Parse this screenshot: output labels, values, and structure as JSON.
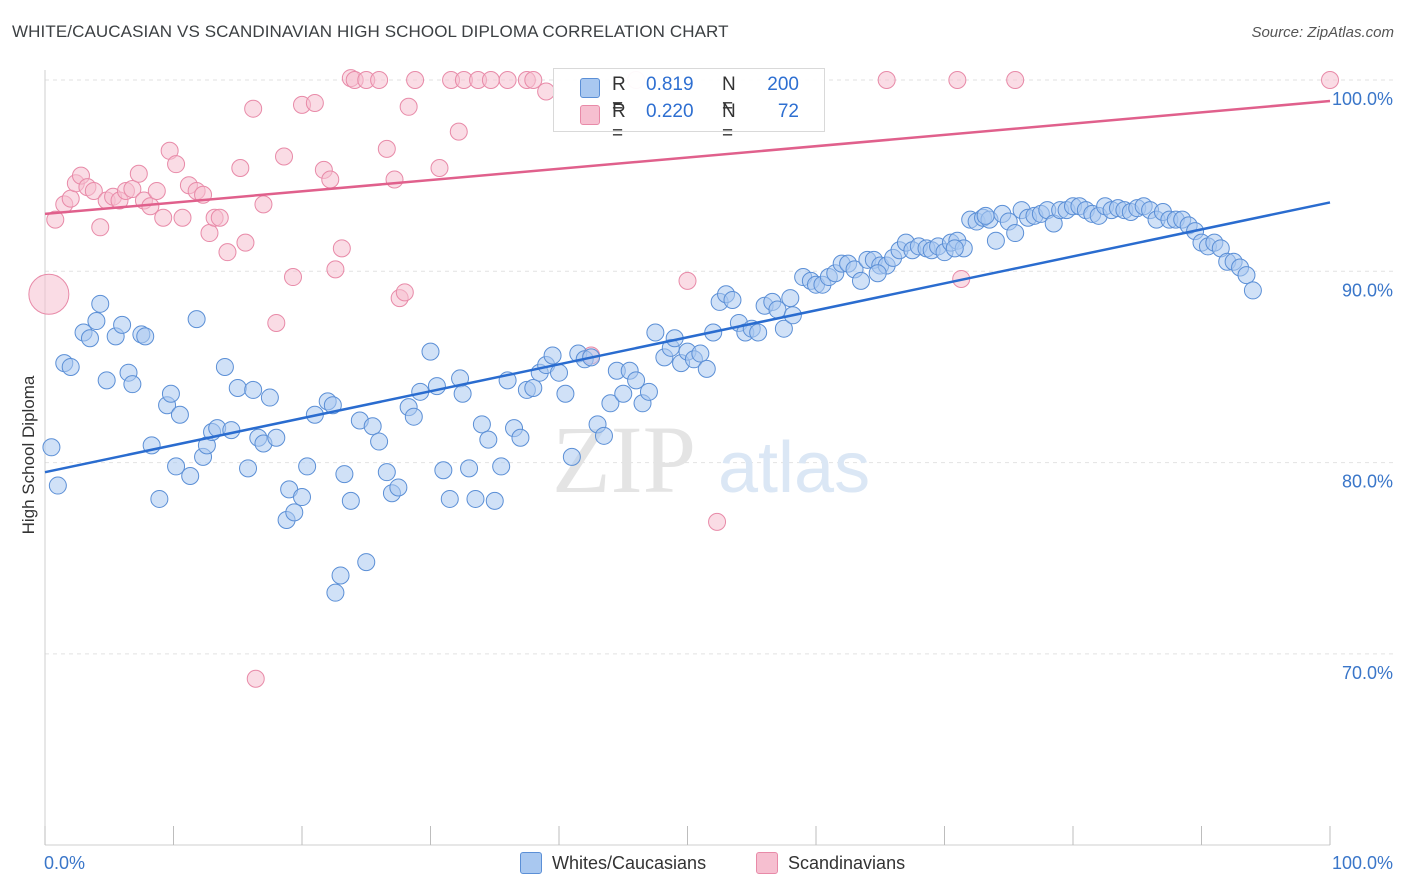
{
  "title": "WHITE/CAUCASIAN VS SCANDINAVIAN HIGH SCHOOL DIPLOMA CORRELATION CHART",
  "source": "Source: ZipAtlas.com",
  "watermark_left": "ZIP",
  "watermark_right": "atlas",
  "legend": {
    "r_label": "R =",
    "n_label": "N =",
    "blue_r": "0.819",
    "blue_n": "200",
    "pink_r": "0.220",
    "pink_n": "72"
  },
  "bottom_legend": {
    "blue_label": "Whites/Caucasians",
    "pink_label": "Scandinavians"
  },
  "colors": {
    "blue_fill": "#a9c8f0",
    "blue_stroke": "#5b8fd6",
    "blue_line": "#2a6ccf",
    "pink_fill": "#f6bfd0",
    "pink_stroke": "#e88aa8",
    "pink_line": "#e0608c",
    "tick_label": "#3a76c9"
  },
  "chart_data": {
    "type": "scatter",
    "title": "WHITE/CAUCASIAN VS SCANDINAVIAN HIGH SCHOOL DIPLOMA CORRELATION CHART",
    "xlabel": "",
    "ylabel": "High School Diploma",
    "xlim": [
      0,
      100
    ],
    "ylim": [
      58,
      102
    ],
    "x_tick_labels": [
      "0.0%",
      "100.0%"
    ],
    "y_ticks": [
      70,
      80,
      90,
      100
    ],
    "y_tick_labels": [
      "70.0%",
      "80.0%",
      "90.0%",
      "100.0%"
    ],
    "grid": "horizontal dashed",
    "legend_position": "top-center",
    "series": [
      {
        "name": "Whites/Caucasians",
        "R": 0.819,
        "N": 200,
        "trend": {
          "x": [
            0,
            100
          ],
          "y": [
            79.5,
            93.6
          ]
        },
        "points": [
          [
            0.5,
            80.8
          ],
          [
            1,
            78.8
          ],
          [
            1.5,
            85.2
          ],
          [
            2,
            85
          ],
          [
            3,
            86.8
          ],
          [
            3.5,
            86.5
          ],
          [
            4,
            87.4
          ],
          [
            4.3,
            88.3
          ],
          [
            4.8,
            84.3
          ],
          [
            5.5,
            86.6
          ],
          [
            6,
            87.2
          ],
          [
            6.5,
            84.7
          ],
          [
            6.8,
            84.1
          ],
          [
            7.5,
            86.7
          ],
          [
            7.8,
            86.6
          ],
          [
            8.3,
            80.9
          ],
          [
            8.9,
            78.1
          ],
          [
            9.5,
            83
          ],
          [
            9.8,
            83.6
          ],
          [
            10.2,
            79.8
          ],
          [
            10.5,
            82.5
          ],
          [
            11.3,
            79.3
          ],
          [
            11.8,
            87.5
          ],
          [
            12.3,
            80.3
          ],
          [
            12.6,
            80.9
          ],
          [
            13,
            81.6
          ],
          [
            13.4,
            81.8
          ],
          [
            14,
            85
          ],
          [
            14.5,
            81.7
          ],
          [
            15,
            83.9
          ],
          [
            15.8,
            79.7
          ],
          [
            16.2,
            83.8
          ],
          [
            16.6,
            81.3
          ],
          [
            17,
            81
          ],
          [
            17.5,
            83.4
          ],
          [
            18,
            81.3
          ],
          [
            18.8,
            77
          ],
          [
            19,
            78.6
          ],
          [
            19.4,
            77.4
          ],
          [
            20,
            78.2
          ],
          [
            20.4,
            79.8
          ],
          [
            21,
            82.5
          ],
          [
            22,
            83.2
          ],
          [
            22.4,
            83
          ],
          [
            22.6,
            73.2
          ],
          [
            23,
            74.1
          ],
          [
            23.3,
            79.4
          ],
          [
            23.8,
            78
          ],
          [
            24.5,
            82.2
          ],
          [
            25,
            74.8
          ],
          [
            25.5,
            81.9
          ],
          [
            26,
            81.1
          ],
          [
            26.6,
            79.5
          ],
          [
            27,
            78.4
          ],
          [
            27.5,
            78.7
          ],
          [
            28.3,
            82.9
          ],
          [
            28.7,
            82.4
          ],
          [
            29.2,
            83.7
          ],
          [
            30,
            85.8
          ],
          [
            30.5,
            84
          ],
          [
            31,
            79.6
          ],
          [
            31.5,
            78.1
          ],
          [
            32.3,
            84.4
          ],
          [
            32.5,
            83.6
          ],
          [
            33,
            79.7
          ],
          [
            33.5,
            78.1
          ],
          [
            34,
            82
          ],
          [
            34.5,
            81.2
          ],
          [
            35,
            78
          ],
          [
            35.5,
            79.8
          ],
          [
            36,
            84.3
          ],
          [
            36.5,
            81.8
          ],
          [
            37,
            81.3
          ],
          [
            37.5,
            83.8
          ],
          [
            38,
            83.9
          ],
          [
            38.5,
            84.7
          ],
          [
            39,
            85.1
          ],
          [
            39.5,
            85.6
          ],
          [
            40,
            84.7
          ],
          [
            40.5,
            83.6
          ],
          [
            41,
            80.3
          ],
          [
            41.5,
            85.7
          ],
          [
            42,
            85.4
          ],
          [
            42.5,
            85.5
          ],
          [
            43,
            82
          ],
          [
            43.5,
            81.4
          ],
          [
            44,
            83.1
          ],
          [
            44.5,
            84.8
          ],
          [
            45,
            83.6
          ],
          [
            45.5,
            84.8
          ],
          [
            46,
            84.3
          ],
          [
            46.5,
            83.1
          ],
          [
            47,
            83.7
          ],
          [
            47.5,
            86.8
          ],
          [
            48.2,
            85.5
          ],
          [
            48.7,
            86
          ],
          [
            49,
            86.5
          ],
          [
            49.5,
            85.2
          ],
          [
            50,
            85.8
          ],
          [
            50.5,
            85.4
          ],
          [
            51,
            85.7
          ],
          [
            51.5,
            84.9
          ],
          [
            52,
            86.8
          ],
          [
            52.5,
            88.4
          ],
          [
            53,
            88.8
          ],
          [
            53.5,
            88.5
          ],
          [
            54,
            87.3
          ],
          [
            54.5,
            86.8
          ],
          [
            55,
            87
          ],
          [
            55.5,
            86.8
          ],
          [
            56,
            88.2
          ],
          [
            56.6,
            88.4
          ],
          [
            57,
            88
          ],
          [
            57.5,
            87
          ],
          [
            58,
            88.6
          ],
          [
            59,
            89.7
          ],
          [
            59.6,
            89.5
          ],
          [
            60,
            89.3
          ],
          [
            60.5,
            89.3
          ],
          [
            61,
            89.7
          ],
          [
            61.5,
            89.9
          ],
          [
            62,
            90.4
          ],
          [
            62.5,
            90.4
          ],
          [
            63,
            90.1
          ],
          [
            63.5,
            89.5
          ],
          [
            64,
            90.6
          ],
          [
            64.5,
            90.6
          ],
          [
            65,
            90.3
          ],
          [
            65.5,
            90.3
          ],
          [
            66,
            90.7
          ],
          [
            66.5,
            91.1
          ],
          [
            67,
            91.5
          ],
          [
            67.5,
            91.1
          ],
          [
            68,
            91.3
          ],
          [
            68.6,
            91.2
          ],
          [
            69,
            91.1
          ],
          [
            69.5,
            91.3
          ],
          [
            70,
            91
          ],
          [
            70.5,
            91.5
          ],
          [
            71,
            91.6
          ],
          [
            71.5,
            91.2
          ],
          [
            72,
            92.7
          ],
          [
            72.5,
            92.6
          ],
          [
            73,
            92.8
          ],
          [
            73.5,
            92.7
          ],
          [
            74,
            91.6
          ],
          [
            74.5,
            93
          ],
          [
            75,
            92.6
          ],
          [
            75.5,
            92
          ],
          [
            76,
            93.2
          ],
          [
            76.5,
            92.8
          ],
          [
            77,
            92.9
          ],
          [
            77.5,
            93
          ],
          [
            78,
            93.2
          ],
          [
            78.5,
            92.5
          ],
          [
            79,
            93.2
          ],
          [
            79.5,
            93.2
          ],
          [
            80,
            93.4
          ],
          [
            80.5,
            93.4
          ],
          [
            81,
            93.2
          ],
          [
            81.5,
            93
          ],
          [
            82,
            92.9
          ],
          [
            82.5,
            93.4
          ],
          [
            83,
            93.2
          ],
          [
            83.5,
            93.3
          ],
          [
            84,
            93.2
          ],
          [
            84.5,
            93.1
          ],
          [
            85,
            93.3
          ],
          [
            85.5,
            93.4
          ],
          [
            86,
            93.2
          ],
          [
            86.5,
            92.7
          ],
          [
            87,
            93.1
          ],
          [
            87.5,
            92.7
          ],
          [
            88,
            92.7
          ],
          [
            88.5,
            92.7
          ],
          [
            89,
            92.4
          ],
          [
            89.5,
            92.1
          ],
          [
            90,
            91.5
          ],
          [
            90.5,
            91.3
          ],
          [
            91,
            91.5
          ],
          [
            91.5,
            91.2
          ],
          [
            92,
            90.5
          ],
          [
            92.5,
            90.5
          ],
          [
            93,
            90.2
          ],
          [
            93.5,
            89.8
          ],
          [
            94,
            89
          ],
          [
            73.2,
            92.9
          ],
          [
            70.8,
            91.2
          ],
          [
            64.8,
            89.9
          ],
          [
            58.2,
            87.7
          ]
        ]
      },
      {
        "name": "Scandinavians",
        "R": 0.22,
        "N": 72,
        "trend": {
          "x": [
            0,
            100
          ],
          "y": [
            93.0,
            98.9
          ]
        },
        "points": [
          [
            0.3,
            88.8
          ],
          [
            0.8,
            92.7
          ],
          [
            1.5,
            93.5
          ],
          [
            2,
            93.8
          ],
          [
            2.4,
            94.6
          ],
          [
            2.8,
            95
          ],
          [
            3.3,
            94.4
          ],
          [
            3.8,
            94.2
          ],
          [
            4.3,
            92.3
          ],
          [
            4.8,
            93.7
          ],
          [
            5.3,
            93.9
          ],
          [
            5.8,
            93.7
          ],
          [
            6.3,
            94.2
          ],
          [
            6.8,
            94.3
          ],
          [
            7.3,
            95.1
          ],
          [
            7.7,
            93.7
          ],
          [
            8.2,
            93.4
          ],
          [
            8.7,
            94.2
          ],
          [
            9.2,
            92.8
          ],
          [
            9.7,
            96.3
          ],
          [
            10.2,
            95.6
          ],
          [
            10.7,
            92.8
          ],
          [
            11.2,
            94.5
          ],
          [
            11.8,
            94.2
          ],
          [
            12.3,
            94
          ],
          [
            12.8,
            92
          ],
          [
            13.2,
            92.8
          ],
          [
            13.6,
            92.8
          ],
          [
            14.2,
            91
          ],
          [
            15.2,
            95.4
          ],
          [
            15.6,
            91.5
          ],
          [
            16.2,
            98.5
          ],
          [
            16.4,
            68.7
          ],
          [
            17,
            93.5
          ],
          [
            18,
            87.3
          ],
          [
            18.6,
            96
          ],
          [
            19.3,
            89.7
          ],
          [
            20,
            98.7
          ],
          [
            21,
            98.8
          ],
          [
            21.7,
            95.3
          ],
          [
            22.2,
            94.8
          ],
          [
            22.6,
            90.1
          ],
          [
            23.1,
            91.2
          ],
          [
            23.8,
            100.1
          ],
          [
            24.1,
            100
          ],
          [
            25,
            100
          ],
          [
            26,
            100
          ],
          [
            26.6,
            96.4
          ],
          [
            27.2,
            94.8
          ],
          [
            27.6,
            88.6
          ],
          [
            28,
            88.9
          ],
          [
            28.3,
            98.6
          ],
          [
            28.8,
            100
          ],
          [
            30.7,
            95.4
          ],
          [
            31.6,
            100
          ],
          [
            32.2,
            97.3
          ],
          [
            32.6,
            100
          ],
          [
            33.7,
            100
          ],
          [
            34.7,
            100
          ],
          [
            36,
            100
          ],
          [
            37.5,
            100
          ],
          [
            38,
            100
          ],
          [
            39,
            99.4
          ],
          [
            42.5,
            85.6
          ],
          [
            50,
            89.5
          ],
          [
            52.3,
            76.9
          ],
          [
            65.5,
            100
          ],
          [
            71,
            100
          ],
          [
            71.3,
            89.6
          ],
          [
            75.5,
            100
          ],
          [
            100,
            100
          ],
          [
            46,
            100
          ]
        ]
      }
    ]
  }
}
